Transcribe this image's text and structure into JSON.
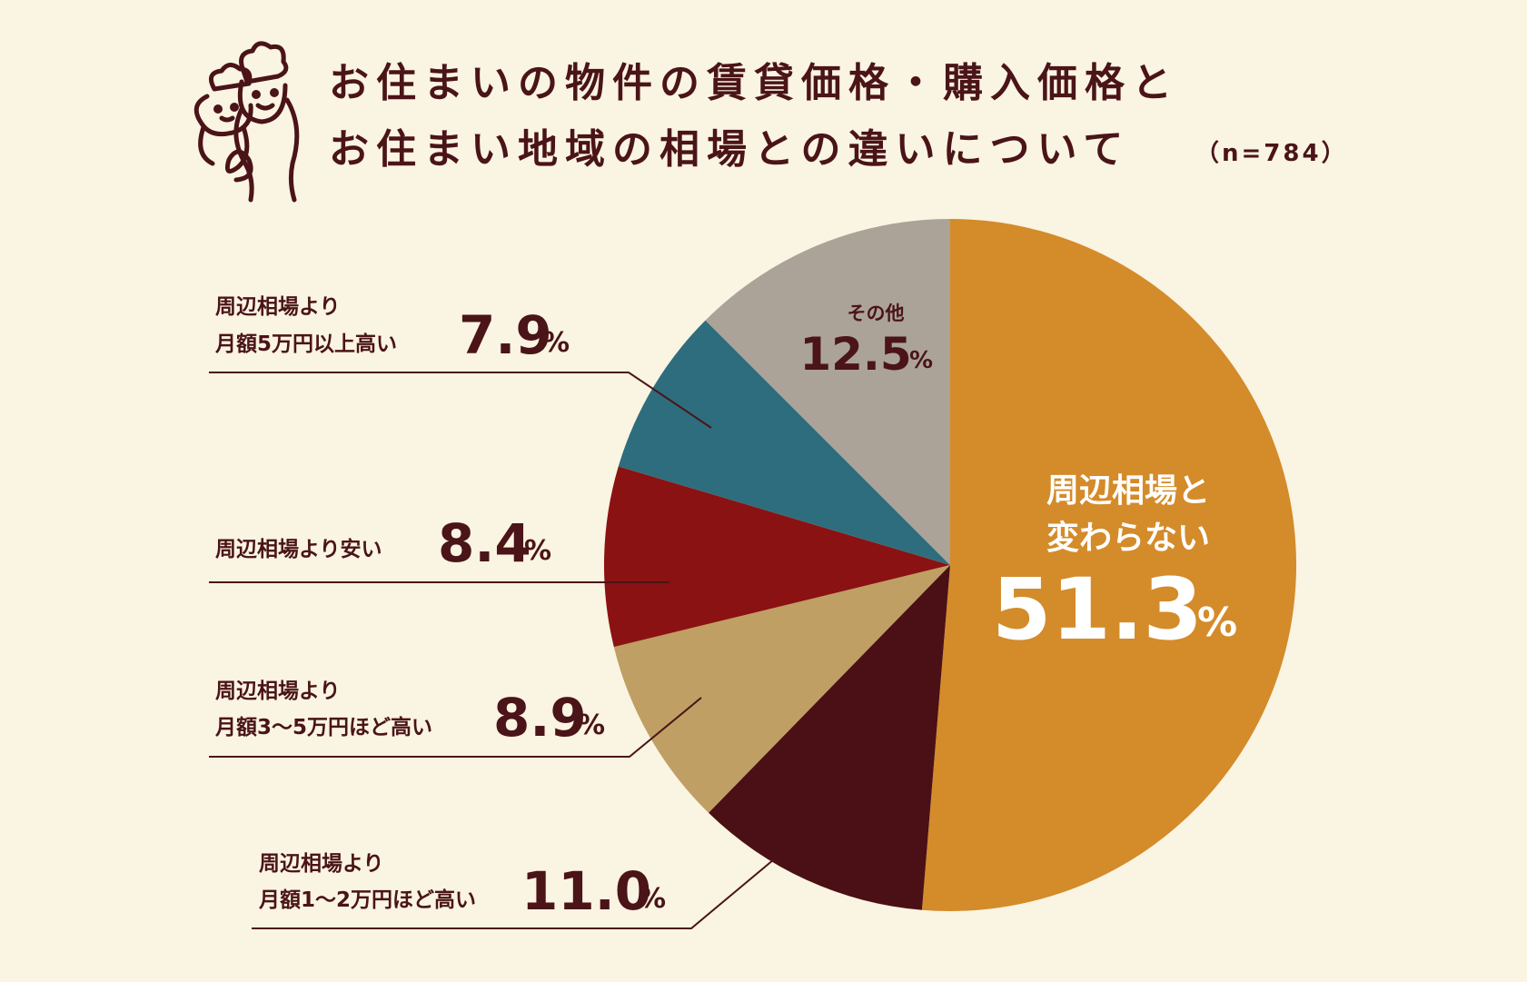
{
  "header": {
    "title_line1": "お住まいの物件の賃貸価格・購入価格と",
    "title_line2": "お住まい地域の相場との違いについて",
    "sample_size": "（n=784）",
    "mascot_icon": "chef-mascots-icon"
  },
  "chart_data": {
    "type": "pie",
    "start_angle_deg": 0,
    "direction": "clockwise",
    "slices": [
      {
        "label_lines": [
          "周辺相場と",
          "変わらない"
        ],
        "value": 51.3,
        "value_text": "51.3",
        "unit": "%",
        "color": "#d48b2a"
      },
      {
        "label_lines": [
          "周辺相場より",
          "月額1〜2万円ほど高い"
        ],
        "value": 11.0,
        "value_text": "11.0",
        "unit": "%",
        "color": "#4a1015"
      },
      {
        "label_lines": [
          "周辺相場より",
          "月額3〜5万円ほど高い"
        ],
        "value": 8.9,
        "value_text": "8.9",
        "unit": "%",
        "color": "#bf9f63"
      },
      {
        "label_lines": [
          "周辺相場より安い"
        ],
        "value": 8.4,
        "value_text": "8.4",
        "unit": "%",
        "color": "#8b1212"
      },
      {
        "label_lines": [
          "周辺相場より",
          "月額5万円以上高い"
        ],
        "value": 7.9,
        "value_text": "7.9",
        "unit": "%",
        "color": "#2e6d7d"
      },
      {
        "label_lines": [
          "その他"
        ],
        "value": 12.5,
        "value_text": "12.5",
        "unit": "%",
        "color": "#aba398"
      }
    ]
  }
}
